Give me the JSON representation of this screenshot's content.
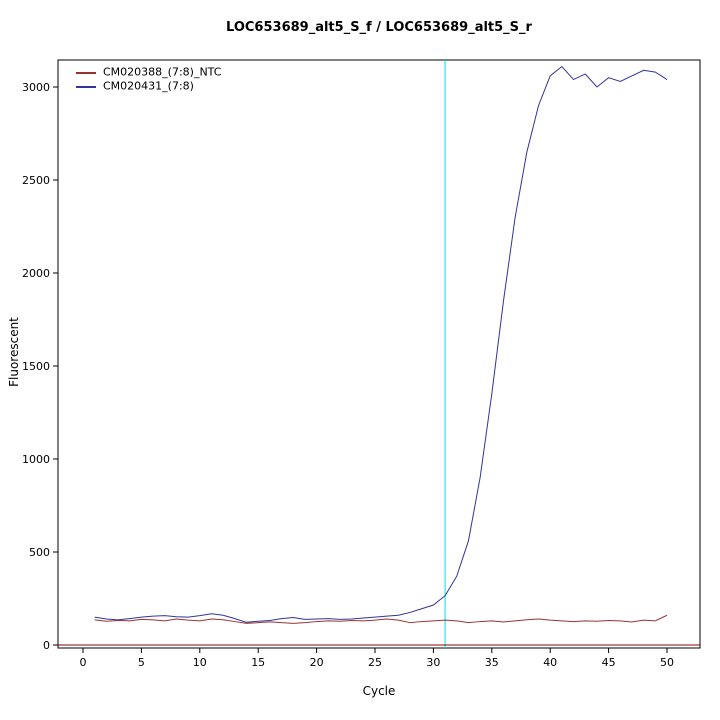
{
  "chart_data": {
    "type": "line",
    "title": "LOC653689_alt5_S_f / LOC653689_alt5_S_r",
    "xlabel": "Cycle",
    "ylabel": "Fluorescent",
    "grid": false,
    "legend_position": "top-left",
    "xlim": [
      -2,
      53
    ],
    "ylim": [
      -16,
      3145
    ],
    "x_ticks": [
      0,
      5,
      10,
      15,
      20,
      25,
      30,
      35,
      40,
      45,
      50
    ],
    "y_ticks": [
      0,
      500,
      1000,
      1500,
      2000,
      2500,
      3000
    ],
    "threshold_cycle": 31,
    "baseline_y": 0,
    "colors": {
      "threshold_line": "#00e0e0",
      "baseline_line": "#8b0000",
      "axis": "#000000",
      "background": "#ffffff"
    },
    "x": [
      1,
      2,
      3,
      4,
      5,
      6,
      7,
      8,
      9,
      10,
      11,
      12,
      13,
      14,
      15,
      16,
      17,
      18,
      19,
      20,
      21,
      22,
      23,
      24,
      25,
      26,
      27,
      28,
      29,
      30,
      31,
      32,
      33,
      34,
      35,
      36,
      37,
      38,
      39,
      40,
      41,
      42,
      43,
      44,
      45,
      46,
      47,
      48,
      49,
      50
    ],
    "series": [
      {
        "name": "CM020388_(7:8)_NTC",
        "color": "#993333",
        "values": [
          135,
          128,
          132,
          130,
          138,
          135,
          130,
          140,
          134,
          130,
          140,
          136,
          126,
          116,
          120,
          124,
          120,
          116,
          120,
          126,
          130,
          128,
          132,
          130,
          134,
          140,
          134,
          120,
          126,
          130,
          134,
          130,
          120,
          126,
          130,
          124,
          130,
          136,
          140,
          134,
          130,
          126,
          130,
          128,
          132,
          130,
          124,
          134,
          130,
          160
        ]
      },
      {
        "name": "CM020431_(7:8)",
        "color": "#333399",
        "values": [
          150,
          140,
          135,
          142,
          150,
          155,
          158,
          152,
          150,
          158,
          168,
          160,
          142,
          122,
          128,
          132,
          142,
          148,
          138,
          140,
          142,
          138,
          140,
          145,
          150,
          155,
          160,
          175,
          195,
          215,
          265,
          370,
          560,
          900,
          1350,
          1850,
          2300,
          2650,
          2900,
          3060,
          3110,
          3040,
          3070,
          3000,
          3050,
          3030,
          3060,
          3090,
          3080,
          3040
        ]
      }
    ]
  }
}
